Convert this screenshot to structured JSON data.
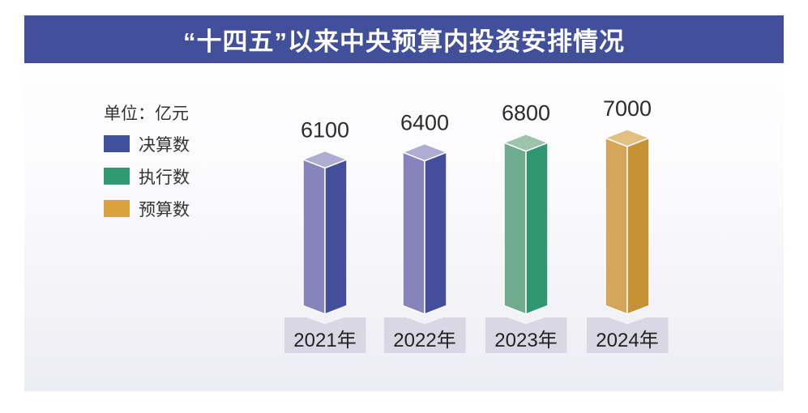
{
  "header": {
    "title": "“十四五”以来中央预算内投资安排情况",
    "background_color": "#42509C",
    "text_color": "#FFFFFF"
  },
  "legend": {
    "unit_label": "单位：亿元",
    "items": [
      {
        "label": "决算数",
        "color": "#41509B"
      },
      {
        "label": "执行数",
        "color": "#2F9A73"
      },
      {
        "label": "预算数",
        "color": "#D8A33C"
      }
    ]
  },
  "chart_data": {
    "type": "bar",
    "variant": "3d-column",
    "title": "“十四五”以来中央预算内投资安排情况",
    "unit": "亿元",
    "categories": [
      "2021年",
      "2022年",
      "2023年",
      "2024年"
    ],
    "values": [
      6100,
      6400,
      6800,
      7000
    ],
    "bars": [
      {
        "category": "2021年",
        "value": 6100,
        "series": "决算数"
      },
      {
        "category": "2022年",
        "value": 6400,
        "series": "决算数"
      },
      {
        "category": "2023年",
        "value": 6800,
        "series": "执行数"
      },
      {
        "category": "2024年",
        "value": 7000,
        "series": "预算数"
      }
    ],
    "series": [
      {
        "name": "决算数",
        "color": "#41509B",
        "faces": {
          "left": "#8783BB",
          "right": "#434F9B",
          "top": "#AFACD4"
        }
      },
      {
        "name": "执行数",
        "color": "#2F9A73",
        "faces": {
          "left": "#70AB8D",
          "right": "#2F9873",
          "top": "#9CC5AC"
        }
      },
      {
        "name": "预算数",
        "color": "#D8A33C",
        "faces": {
          "left": "#D6A75B",
          "right": "#C79236",
          "top": "#E2C083"
        }
      }
    ],
    "value_labels_shown": true,
    "legend_position": "top-left",
    "category_box_color": "#D8D7E3",
    "grid": false
  }
}
